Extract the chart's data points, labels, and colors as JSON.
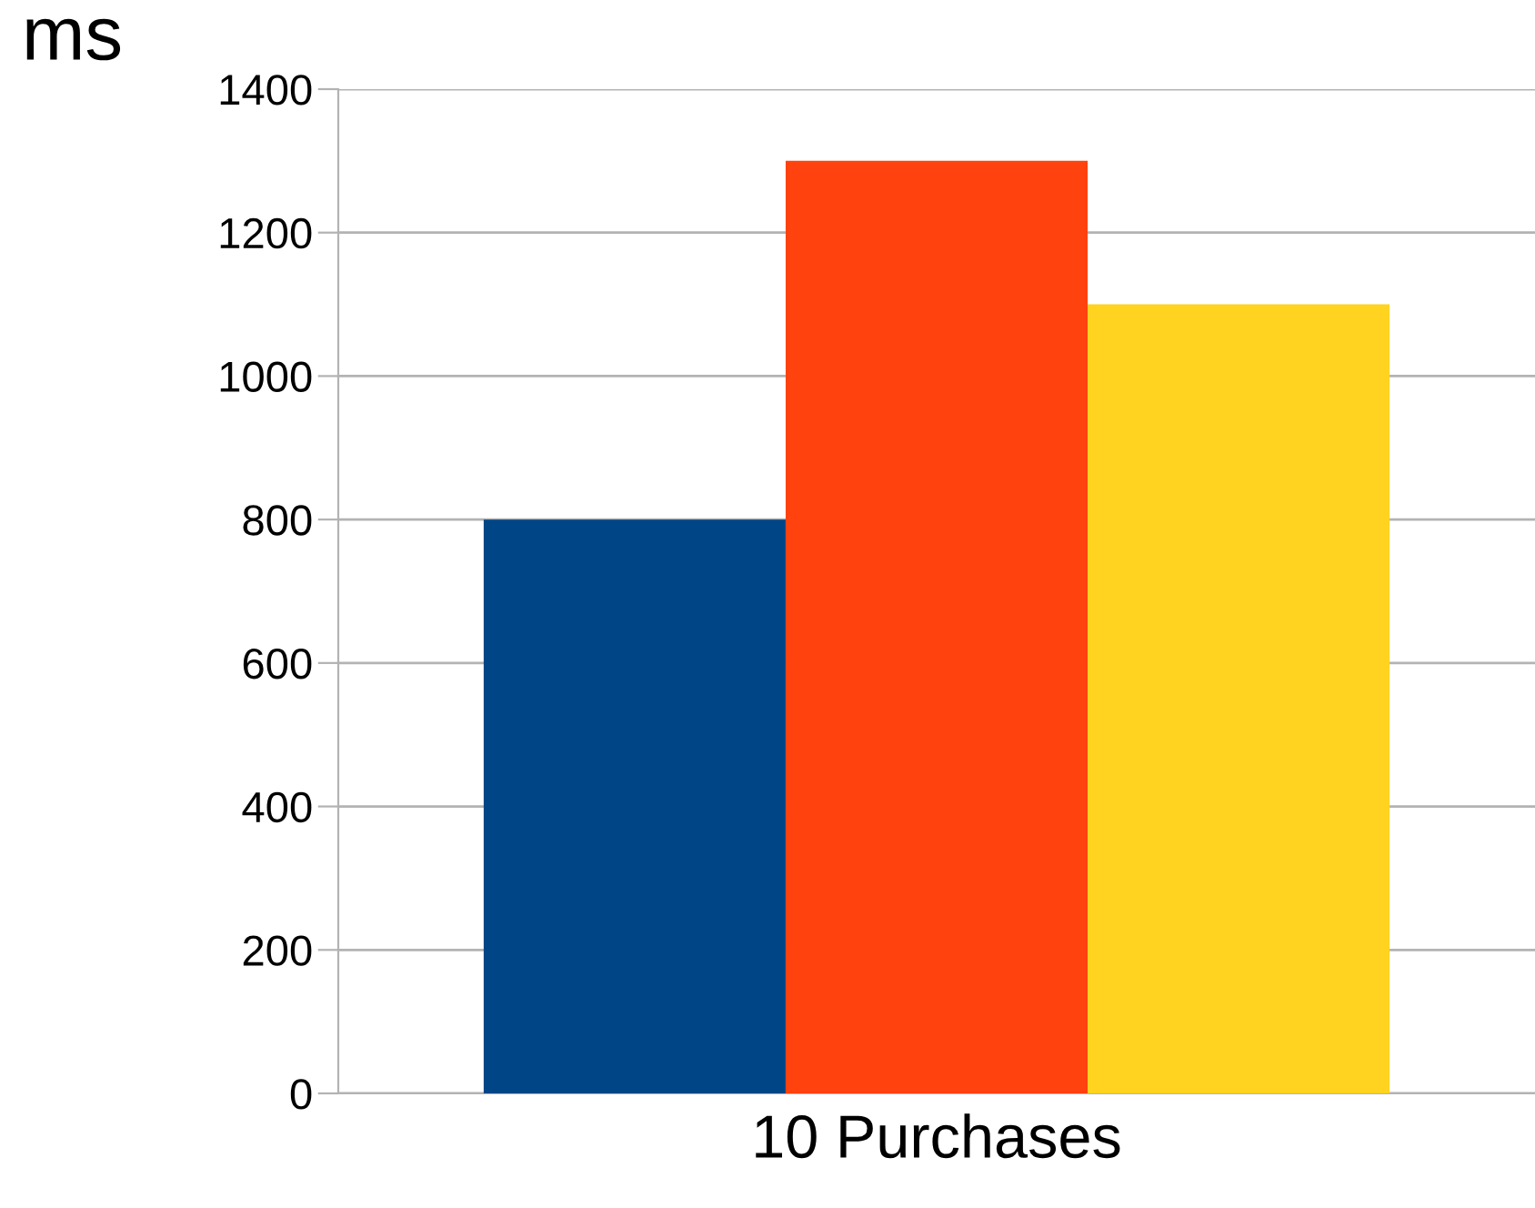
{
  "chart_data": {
    "type": "bar",
    "ylabel": "ms",
    "categories": [
      "10 Purchases"
    ],
    "series": [
      {
        "color": "#004586",
        "values": [
          800
        ]
      },
      {
        "color": "#ff420e",
        "values": [
          1300
        ]
      },
      {
        "color": "#ffd320",
        "values": [
          1100
        ]
      }
    ],
    "ylim": [
      0,
      1400
    ],
    "yticks": [
      0,
      200,
      400,
      600,
      800,
      1000,
      1200,
      1400
    ],
    "grid": "y",
    "legend": false
  }
}
